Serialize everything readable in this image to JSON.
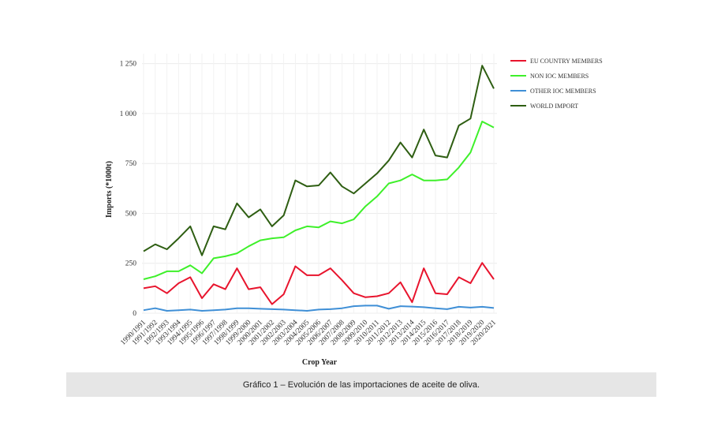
{
  "caption": "Gráfico 1 – Evolución de las importaciones de aceite de oliva.",
  "chart_data": {
    "type": "line",
    "title": "",
    "xlabel": "Crop Year",
    "ylabel": "Imports (*1000t)",
    "ylim": [
      0,
      1300
    ],
    "yticks": [
      0,
      250,
      500,
      750,
      1000,
      1250
    ],
    "ytick_labels": [
      "0",
      "250",
      "500",
      "750",
      "1 000",
      "1 250"
    ],
    "grid": true,
    "legend_position": "right",
    "categories": [
      "1990/1991",
      "1991/1992",
      "1992/1993",
      "1993/1994",
      "1994/1995",
      "1995/1996",
      "1996/1997",
      "1997/1998",
      "1998/1999",
      "1999/2000",
      "2000/2001",
      "2001/2002",
      "2002/2003",
      "2003/2004",
      "2004/2005",
      "2005/2006",
      "2006/2007",
      "2007/2008",
      "2008/2009",
      "2009/2010",
      "2010/2011",
      "2011/2012",
      "2012/2013",
      "2013/2014",
      "2014/2015",
      "2015/2016",
      "2016/2017",
      "2017/2018",
      "2018/2019",
      "2019/2020",
      "2020/2021"
    ],
    "series": [
      {
        "name": "EU COUNTRY MEMBERS",
        "color": "#e8142d",
        "values": [
          125,
          135,
          100,
          150,
          180,
          75,
          145,
          120,
          225,
          120,
          130,
          45,
          95,
          235,
          190,
          190,
          225,
          165,
          100,
          80,
          85,
          100,
          155,
          55,
          225,
          100,
          95,
          180,
          150,
          252,
          170
        ]
      },
      {
        "name": "NON IOC MEMBERS",
        "color": "#3ef02a",
        "values": [
          170,
          185,
          210,
          210,
          240,
          200,
          275,
          285,
          300,
          335,
          365,
          375,
          380,
          415,
          435,
          430,
          460,
          450,
          470,
          535,
          585,
          650,
          665,
          695,
          665,
          665,
          670,
          730,
          805,
          960,
          930
        ]
      },
      {
        "name": "OTHER IOC MEMBERS",
        "color": "#3f8fd6",
        "values": [
          15,
          25,
          12,
          15,
          18,
          12,
          15,
          18,
          25,
          25,
          22,
          20,
          18,
          15,
          12,
          18,
          20,
          25,
          35,
          38,
          38,
          22,
          35,
          33,
          30,
          25,
          20,
          32,
          28,
          32,
          26
        ]
      },
      {
        "name": "WORLD IMPORT",
        "color": "#2e5e12",
        "values": [
          310,
          345,
          320,
          375,
          435,
          290,
          435,
          420,
          550,
          480,
          520,
          435,
          490,
          665,
          635,
          640,
          705,
          635,
          600,
          650,
          700,
          765,
          855,
          780,
          920,
          790,
          780,
          940,
          975,
          1240,
          1125
        ]
      }
    ]
  }
}
